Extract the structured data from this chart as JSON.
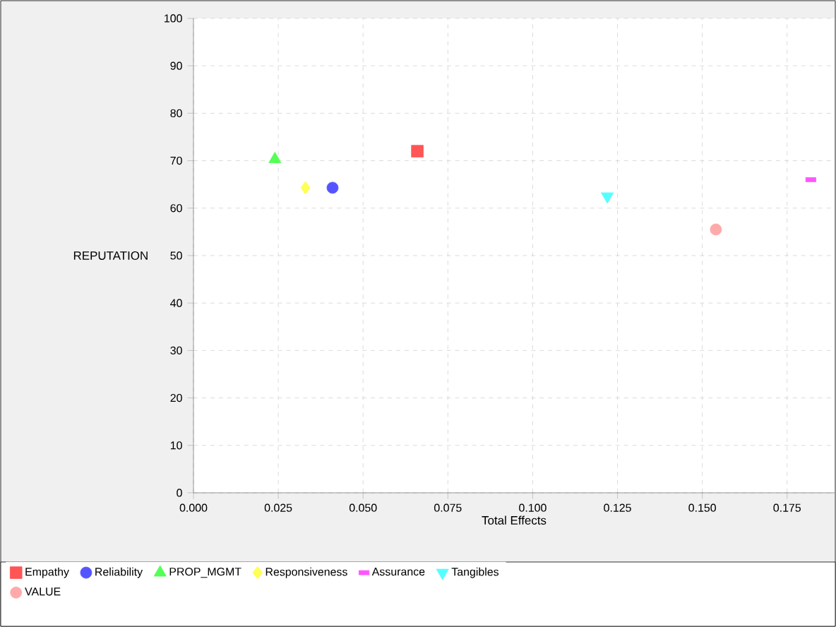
{
  "chart_data": {
    "type": "scatter",
    "xlabel": "Total Effects",
    "ylabel": "REPUTATION",
    "xlim": [
      0,
      0.189
    ],
    "ylim": [
      0,
      100
    ],
    "xticks": [
      {
        "value": 0,
        "label": "0.000"
      },
      {
        "value": 0.025,
        "label": "0.025"
      },
      {
        "value": 0.05,
        "label": "0.050"
      },
      {
        "value": 0.075,
        "label": "0.075"
      },
      {
        "value": 0.1,
        "label": "0.100"
      },
      {
        "value": 0.125,
        "label": "0.125"
      },
      {
        "value": 0.15,
        "label": "0.150"
      },
      {
        "value": 0.175,
        "label": "0.175"
      }
    ],
    "yticks": [
      0,
      10,
      20,
      30,
      40,
      50,
      60,
      70,
      80,
      90,
      100
    ],
    "grid": true,
    "legend": "bottom",
    "series": [
      {
        "name": "Empathy",
        "color": "#ff5555",
        "marker": "square",
        "x": [
          0.066
        ],
        "values": [
          72
        ]
      },
      {
        "name": "Reliability",
        "color": "#5555ff",
        "marker": "circle",
        "x": [
          0.041
        ],
        "values": [
          64.3
        ]
      },
      {
        "name": "PROP_MGMT",
        "color": "#55ff55",
        "marker": "triangle",
        "x": [
          0.024
        ],
        "values": [
          70.3
        ]
      },
      {
        "name": "Responsiveness",
        "color": "#ffff55",
        "marker": "diamond",
        "x": [
          0.033
        ],
        "values": [
          64.3
        ]
      },
      {
        "name": "Assurance",
        "color": "#ff55ff",
        "marker": "rectangle",
        "x": [
          0.182
        ],
        "values": [
          66
        ]
      },
      {
        "name": "Tangibles",
        "color": "#55ffff",
        "marker": "triangle-down",
        "x": [
          0.122
        ],
        "values": [
          62.5
        ]
      },
      {
        "name": "VALUE",
        "color": "#ffaaaa",
        "marker": "circle",
        "x": [
          0.154
        ],
        "values": [
          55.5
        ]
      }
    ]
  }
}
